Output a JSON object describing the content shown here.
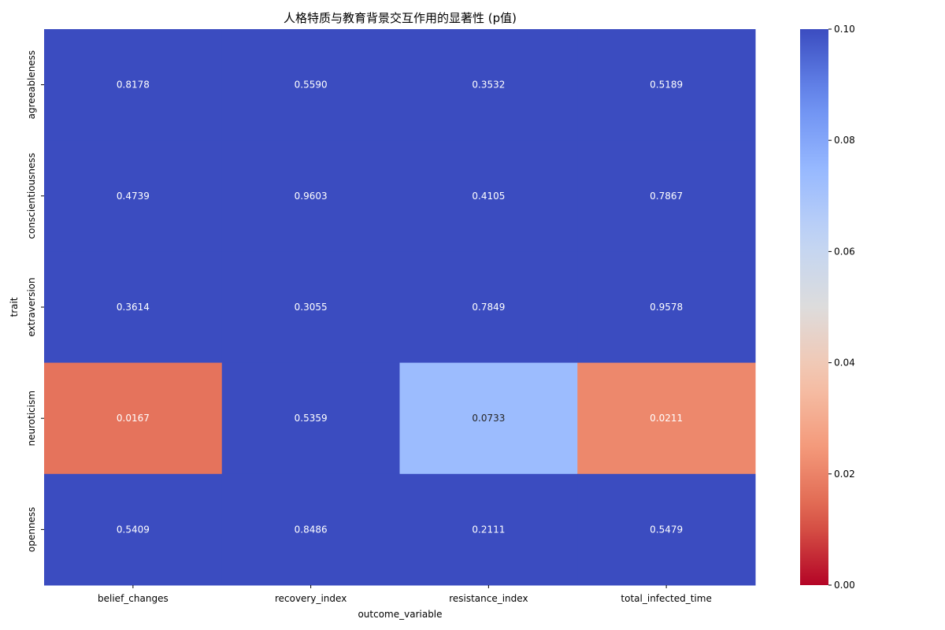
{
  "chart_data": {
    "type": "heatmap",
    "title": "人格特质与教育背景交互作用的显著性 (p值)",
    "xlabel": "outcome_variable",
    "ylabel": "trait",
    "x_categories": [
      "belief_changes",
      "recovery_index",
      "resistance_index",
      "total_infected_time"
    ],
    "y_categories": [
      "agreeableness",
      "conscientiousness",
      "extraversion",
      "neuroticism",
      "openness"
    ],
    "values": [
      [
        0.8178,
        0.559,
        0.3532,
        0.5189
      ],
      [
        0.4739,
        0.9603,
        0.4105,
        0.7867
      ],
      [
        0.3614,
        0.3055,
        0.7849,
        0.9578
      ],
      [
        0.0167,
        0.5359,
        0.0733,
        0.0211
      ],
      [
        0.5409,
        0.8486,
        0.2111,
        0.5479
      ]
    ],
    "value_labels": [
      [
        "0.8178",
        "0.5590",
        "0.3532",
        "0.5189"
      ],
      [
        "0.4739",
        "0.9603",
        "0.4105",
        "0.7867"
      ],
      [
        "0.3614",
        "0.3055",
        "0.7849",
        "0.9578"
      ],
      [
        "0.0167",
        "0.5359",
        "0.0733",
        "0.0211"
      ],
      [
        "0.5409",
        "0.8486",
        "0.2111",
        "0.5479"
      ]
    ],
    "colorbar": {
      "colormap": "coolwarm_r",
      "range": [
        0.0,
        0.1
      ],
      "ticks": [
        "0.00",
        "0.02",
        "0.04",
        "0.06",
        "0.08",
        "0.10"
      ]
    },
    "grid": false,
    "legend": "colorbar-right"
  }
}
